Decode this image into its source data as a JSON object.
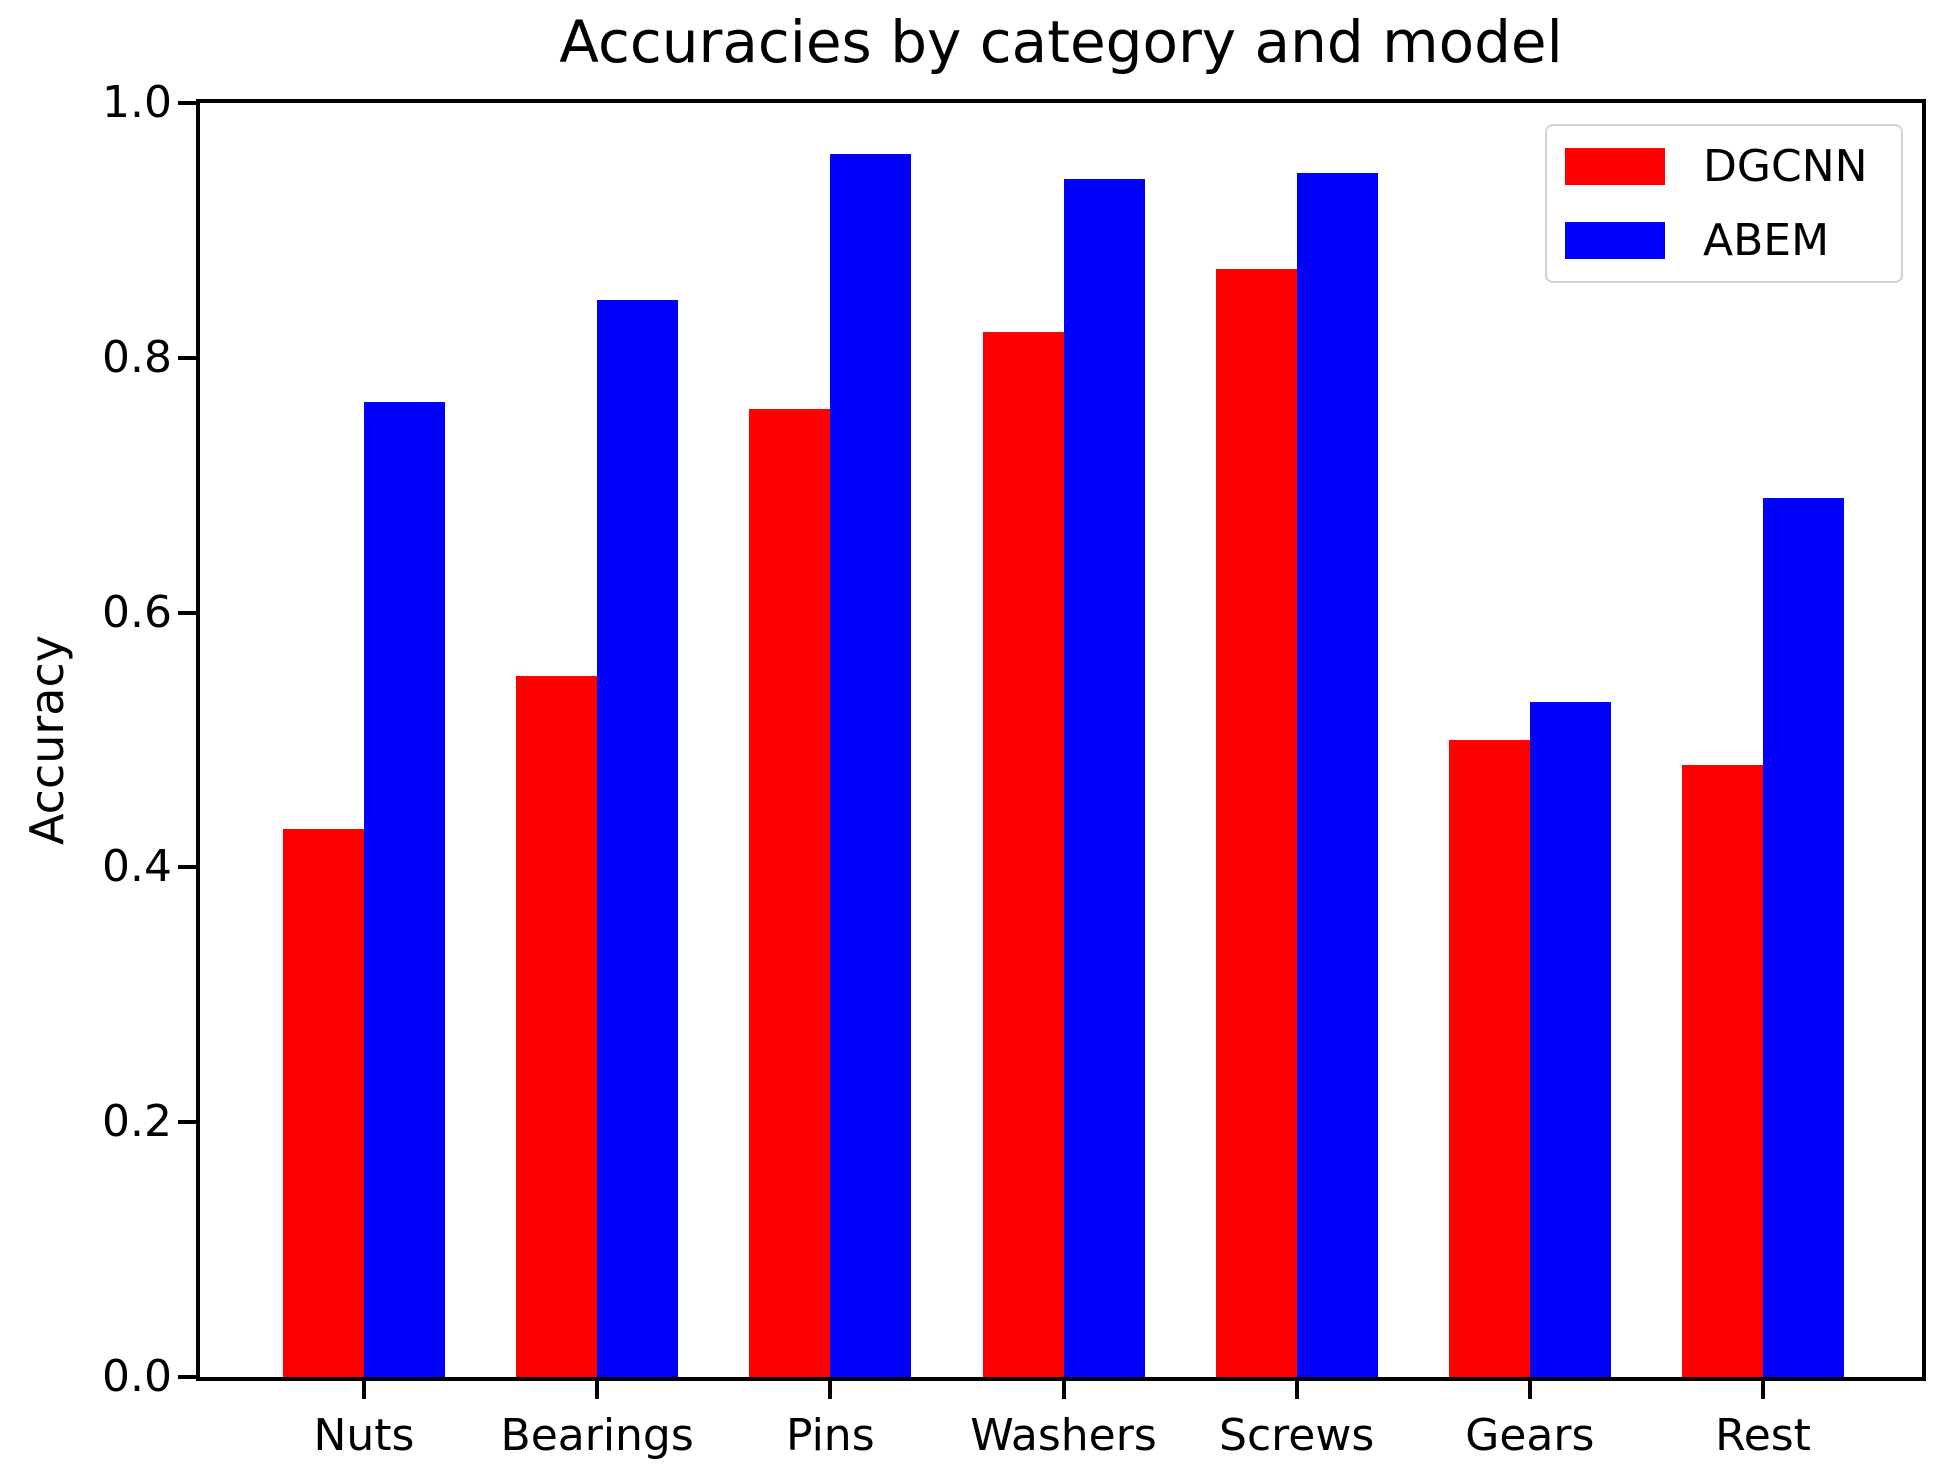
{
  "chart_data": {
    "type": "bar",
    "title": "Accuracies by category and model",
    "xlabel": "",
    "ylabel": "Accuracy",
    "categories": [
      "Nuts",
      "Bearings",
      "Pins",
      "Washers",
      "Screws",
      "Gears",
      "Rest"
    ],
    "series": [
      {
        "name": "DGCNN",
        "color": "#ff0000",
        "values": [
          0.43,
          0.55,
          0.76,
          0.82,
          0.87,
          0.5,
          0.48
        ]
      },
      {
        "name": "ABEM",
        "color": "#0000ff",
        "values": [
          0.765,
          0.845,
          0.96,
          0.94,
          0.945,
          0.53,
          0.69
        ]
      }
    ],
    "ylim": [
      0.0,
      1.0
    ],
    "yticks": [
      "0.0",
      "0.2",
      "0.4",
      "0.6",
      "0.8",
      "1.0"
    ],
    "grid": false,
    "legend_position": "upper right",
    "legend_entries": [
      "DGCNN",
      "ABEM"
    ]
  }
}
